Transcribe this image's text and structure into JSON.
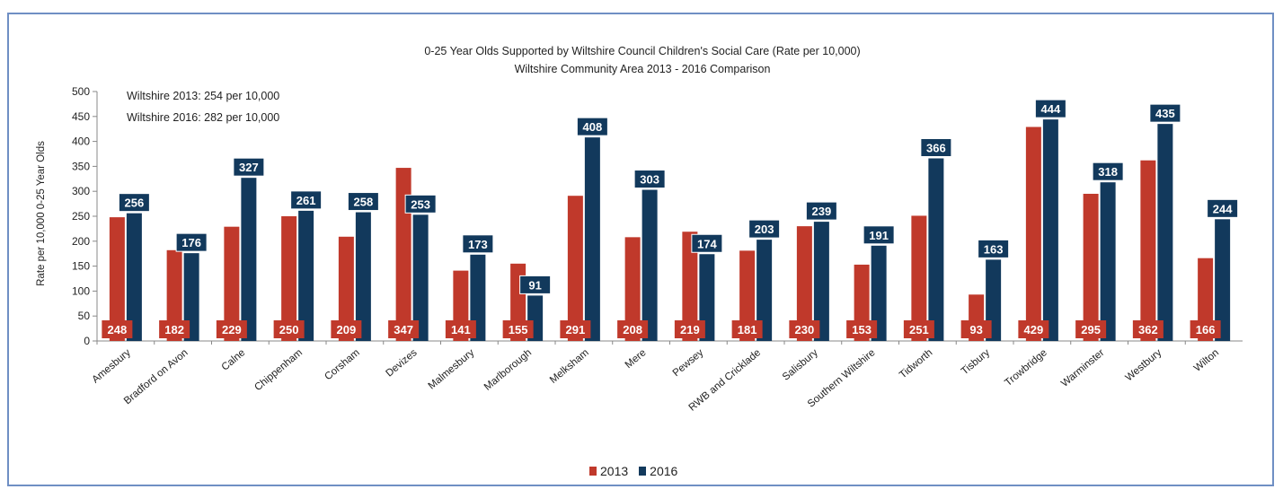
{
  "chart_data": {
    "type": "bar",
    "title": "0-25 Year Olds  Supported by Wiltshire  Council Children's Social Care  (Rate per 10,000)",
    "subtitle": "Wiltshire Community Area 2013 - 2016 Comparison",
    "xlabel": "",
    "ylabel": "Rate per 10,000 0-25 Year Olds",
    "ylim": [
      0,
      500
    ],
    "yticks": [
      0,
      50,
      100,
      150,
      200,
      250,
      300,
      350,
      400,
      450,
      500
    ],
    "grid": false,
    "legend_position": "bottom",
    "categories": [
      "Amesbury",
      "Bradford on Avon",
      "Calne",
      "Chippenham",
      "Corsham",
      "Devizes",
      "Malmesbury",
      "Marlborough",
      "Melksham",
      "Mere",
      "Pewsey",
      "RWB and Cricklade",
      "Salisbury",
      "Southern Wiltshire",
      "Tidworth",
      "Tisbury",
      "Trowbridge",
      "Warminster",
      "Westbury",
      "Wilton"
    ],
    "series": [
      {
        "name": "2013",
        "color": "#c0392b",
        "values": [
          248,
          182,
          229,
          250,
          209,
          347,
          141,
          155,
          291,
          208,
          219,
          181,
          230,
          153,
          251,
          93,
          429,
          295,
          362,
          166
        ]
      },
      {
        "name": "2016",
        "color": "#12395c",
        "values": [
          256,
          176,
          327,
          261,
          258,
          253,
          173,
          91,
          408,
          303,
          174,
          203,
          239,
          191,
          366,
          163,
          444,
          318,
          435,
          244
        ]
      }
    ],
    "annotations": [
      "Wiltshire 2013: 254 per 10,000",
      "Wiltshire 2016: 282 per 10,000"
    ]
  }
}
